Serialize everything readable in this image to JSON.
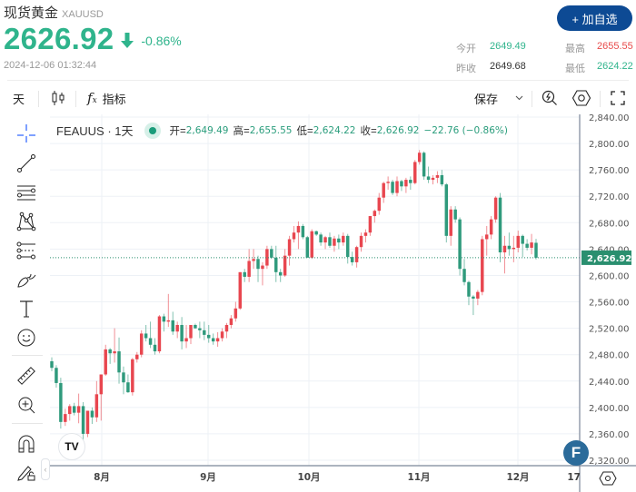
{
  "header": {
    "title": "现货黄金",
    "symbol": "XAUUSD",
    "price": "2626.92",
    "change_pct": "-0.86%",
    "direction": "down",
    "timestamp": "2024-12-06 01:32:44",
    "watch_button": "+ 加自选",
    "stats": {
      "open_label": "今开",
      "open": "2649.49",
      "high_label": "最高",
      "high": "2655.55",
      "prev_close_label": "昨收",
      "prev_close": "2649.68",
      "low_label": "最低",
      "low": "2624.22"
    }
  },
  "toolbar": {
    "interval": "天",
    "candle_icon": "candlestick-icon",
    "indicators_label": "指标",
    "save_label": "保存",
    "icons": [
      "chevron-down-icon",
      "quick-search-icon",
      "settings-icon",
      "fullscreen-icon"
    ]
  },
  "left_tools": [
    "crosshair-icon",
    "trend-line-icon",
    "horizontal-lines-icon",
    "pattern-icon",
    "fib-icon",
    "brush-icon",
    "text-icon",
    "emoji-icon",
    "ruler-icon",
    "zoom-in-icon",
    "magnet-icon",
    "lock-drawing-icon"
  ],
  "legend": {
    "symbol": "FEAUUS · 1天",
    "open_label": "开=",
    "open": "2,649.49",
    "high_label": "高=",
    "high": "2,655.55",
    "low_label": "低=",
    "low": "2,624.22",
    "close_label": "收=",
    "close": "2,626.92",
    "change": "−22.76 (−0.86%)"
  },
  "colors": {
    "up": "#e8464f",
    "down": "#2f9a7c",
    "accent_green": "#2fb48c",
    "high_red": "#e84a4a",
    "button_blue": "#0d4a94",
    "last_price_bg": "#2a8f6f"
  },
  "badges": {
    "tv_logo": "TV",
    "f_badge": "F"
  },
  "chart_data": {
    "type": "candlestick",
    "title": "FEAUUS · 1天",
    "xlabel": "",
    "ylabel": "",
    "x_ticks": [
      "8月",
      "9月",
      "10月",
      "11月",
      "12月",
      "17"
    ],
    "y_ticks": [
      "2,840.00",
      "2,800.00",
      "2,760.00",
      "2,720.00",
      "2,680.00",
      "2,640.00",
      "2,600.00",
      "2,560.00",
      "2,520.00",
      "2,480.00",
      "2,440.00",
      "2,400.00",
      "2,360.00",
      "2,320.00"
    ],
    "ylim": [
      2320,
      2840
    ],
    "last_price": "2,626.92",
    "grid": true,
    "candles": [
      [
        2470,
        2476,
        2455,
        2460
      ],
      [
        2460,
        2464,
        2430,
        2437
      ],
      [
        2437,
        2445,
        2368,
        2378
      ],
      [
        2378,
        2398,
        2372,
        2390
      ],
      [
        2390,
        2405,
        2380,
        2402
      ],
      [
        2402,
        2407,
        2388,
        2392
      ],
      [
        2392,
        2421,
        2376,
        2402
      ],
      [
        2402,
        2408,
        2350,
        2360
      ],
      [
        2360,
        2395,
        2355,
        2395
      ],
      [
        2395,
        2400,
        2375,
        2385
      ],
      [
        2385,
        2440,
        2378,
        2420
      ],
      [
        2420,
        2450,
        2380,
        2450
      ],
      [
        2450,
        2495,
        2448,
        2488
      ],
      [
        2488,
        2490,
        2466,
        2482
      ],
      [
        2482,
        2520,
        2468,
        2485
      ],
      [
        2485,
        2506,
        2436,
        2453
      ],
      [
        2453,
        2462,
        2420,
        2438
      ],
      [
        2438,
        2450,
        2422,
        2423
      ],
      [
        2423,
        2475,
        2418,
        2473
      ],
      [
        2473,
        2484,
        2468,
        2480
      ],
      [
        2480,
        2517,
        2476,
        2512
      ],
      [
        2512,
        2525,
        2500,
        2505
      ],
      [
        2505,
        2530,
        2490,
        2495
      ],
      [
        2495,
        2505,
        2480,
        2485
      ],
      [
        2485,
        2540,
        2482,
        2538
      ],
      [
        2538,
        2542,
        2515,
        2530
      ],
      [
        2530,
        2572,
        2522,
        2532
      ],
      [
        2532,
        2545,
        2510,
        2515
      ],
      [
        2515,
        2530,
        2505,
        2525
      ],
      [
        2525,
        2537,
        2488,
        2500
      ],
      [
        2500,
        2525,
        2490,
        2505
      ],
      [
        2505,
        2518,
        2496,
        2525
      ],
      [
        2525,
        2527,
        2519,
        2520
      ],
      [
        2520,
        2530,
        2505,
        2517
      ],
      [
        2517,
        2530,
        2502,
        2510
      ],
      [
        2510,
        2525,
        2498,
        2505
      ],
      [
        2505,
        2512,
        2495,
        2500
      ],
      [
        2500,
        2514,
        2492,
        2505
      ],
      [
        2505,
        2520,
        2500,
        2515
      ],
      [
        2515,
        2528,
        2505,
        2525
      ],
      [
        2525,
        2540,
        2520,
        2535
      ],
      [
        2535,
        2560,
        2530,
        2550
      ],
      [
        2550,
        2605,
        2548,
        2605
      ],
      [
        2605,
        2610,
        2590,
        2598
      ],
      [
        2598,
        2640,
        2590,
        2622
      ],
      [
        2622,
        2640,
        2610,
        2625
      ],
      [
        2625,
        2630,
        2590,
        2610
      ],
      [
        2610,
        2620,
        2585,
        2615
      ],
      [
        2615,
        2645,
        2610,
        2640
      ],
      [
        2640,
        2645,
        2625,
        2627
      ],
      [
        2627,
        2645,
        2590,
        2605
      ],
      [
        2605,
        2610,
        2590,
        2600
      ],
      [
        2600,
        2640,
        2598,
        2630
      ],
      [
        2630,
        2660,
        2615,
        2655
      ],
      [
        2655,
        2675,
        2650,
        2665
      ],
      [
        2665,
        2682,
        2640,
        2675
      ],
      [
        2675,
        2678,
        2655,
        2658
      ],
      [
        2658,
        2660,
        2630,
        2627
      ],
      [
        2627,
        2670,
        2625,
        2667
      ],
      [
        2667,
        2668,
        2660,
        2662
      ],
      [
        2662,
        2665,
        2645,
        2650
      ],
      [
        2650,
        2660,
        2640,
        2658
      ],
      [
        2658,
        2665,
        2642,
        2645
      ],
      [
        2645,
        2660,
        2636,
        2656
      ],
      [
        2656,
        2662,
        2640,
        2650
      ],
      [
        2650,
        2665,
        2645,
        2660
      ],
      [
        2660,
        2663,
        2618,
        2628
      ],
      [
        2628,
        2636,
        2615,
        2620
      ],
      [
        2620,
        2645,
        2612,
        2643
      ],
      [
        2643,
        2665,
        2636,
        2660
      ],
      [
        2660,
        2670,
        2650,
        2665
      ],
      [
        2665,
        2690,
        2660,
        2690
      ],
      [
        2690,
        2700,
        2680,
        2698
      ],
      [
        2698,
        2725,
        2692,
        2718
      ],
      [
        2718,
        2742,
        2710,
        2740
      ],
      [
        2740,
        2750,
        2730,
        2742
      ],
      [
        2742,
        2745,
        2722,
        2725
      ],
      [
        2725,
        2750,
        2720,
        2743
      ],
      [
        2743,
        2745,
        2728,
        2735
      ],
      [
        2735,
        2748,
        2725,
        2745
      ],
      [
        2745,
        2750,
        2730,
        2740
      ],
      [
        2740,
        2775,
        2738,
        2772
      ],
      [
        2772,
        2790,
        2768,
        2786
      ],
      [
        2786,
        2788,
        2745,
        2750
      ],
      [
        2750,
        2765,
        2740,
        2745
      ],
      [
        2745,
        2752,
        2738,
        2748
      ],
      [
        2748,
        2758,
        2740,
        2752
      ],
      [
        2752,
        2760,
        2735,
        2738
      ],
      [
        2738,
        2740,
        2650,
        2660
      ],
      [
        2660,
        2705,
        2645,
        2700
      ],
      [
        2700,
        2705,
        2680,
        2685
      ],
      [
        2685,
        2688,
        2600,
        2610
      ],
      [
        2610,
        2625,
        2585,
        2590
      ],
      [
        2590,
        2592,
        2555,
        2568
      ],
      [
        2568,
        2570,
        2540,
        2565
      ],
      [
        2565,
        2578,
        2555,
        2575
      ],
      [
        2575,
        2660,
        2570,
        2655
      ],
      [
        2655,
        2675,
        2630,
        2662
      ],
      [
        2662,
        2690,
        2655,
        2685
      ],
      [
        2685,
        2720,
        2680,
        2718
      ],
      [
        2718,
        2725,
        2620,
        2635
      ],
      [
        2635,
        2660,
        2603,
        2645
      ],
      [
        2645,
        2665,
        2630,
        2640
      ],
      [
        2640,
        2660,
        2620,
        2642
      ],
      [
        2642,
        2668,
        2635,
        2660
      ],
      [
        2660,
        2662,
        2628,
        2648
      ],
      [
        2648,
        2655,
        2638,
        2642
      ],
      [
        2642,
        2663,
        2632,
        2650
      ],
      [
        2649.49,
        2655.55,
        2624.22,
        2626.92
      ]
    ]
  }
}
